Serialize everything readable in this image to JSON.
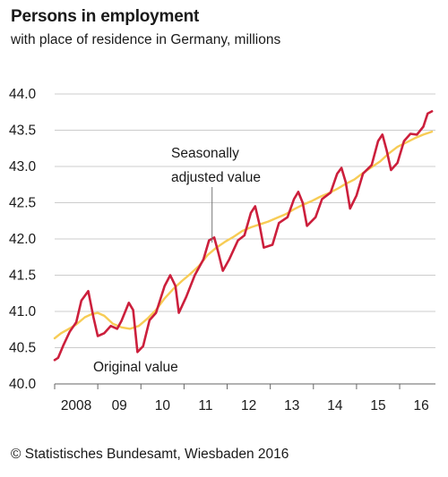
{
  "chart_data": {
    "type": "line",
    "title": "Persons in employment",
    "subtitle": "with place of residence in Germany, millions",
    "ylim": [
      40.0,
      44.0
    ],
    "xlim": [
      2008.0,
      2016.83
    ],
    "y_ticks": [
      "40.0",
      "40.5",
      "41.0",
      "41.5",
      "42.0",
      "42.5",
      "43.0",
      "43.5",
      "44.0"
    ],
    "x_ticks": [
      {
        "label": "2008",
        "x": 2008.5
      },
      {
        "label": "09",
        "x": 2009.5
      },
      {
        "label": "10",
        "x": 2010.5
      },
      {
        "label": "11",
        "x": 2011.5
      },
      {
        "label": "12",
        "x": 2012.5
      },
      {
        "label": "13",
        "x": 2013.5
      },
      {
        "label": "14",
        "x": 2014.5
      },
      {
        "label": "15",
        "x": 2015.5
      },
      {
        "label": "16",
        "x": 2016.5
      }
    ],
    "grid": true,
    "series": [
      {
        "name": "Original value",
        "color": "#cc1f3c",
        "points": [
          [
            2008.0,
            40.33
          ],
          [
            2008.08,
            40.36
          ],
          [
            2008.2,
            40.53
          ],
          [
            2008.35,
            40.72
          ],
          [
            2008.5,
            40.85
          ],
          [
            2008.62,
            41.15
          ],
          [
            2008.78,
            41.28
          ],
          [
            2008.9,
            40.92
          ],
          [
            2009.0,
            40.66
          ],
          [
            2009.15,
            40.7
          ],
          [
            2009.3,
            40.8
          ],
          [
            2009.45,
            40.76
          ],
          [
            2009.55,
            40.87
          ],
          [
            2009.72,
            41.12
          ],
          [
            2009.82,
            41.02
          ],
          [
            2009.92,
            40.44
          ],
          [
            2010.05,
            40.52
          ],
          [
            2010.2,
            40.88
          ],
          [
            2010.35,
            40.98
          ],
          [
            2010.55,
            41.35
          ],
          [
            2010.68,
            41.5
          ],
          [
            2010.8,
            41.35
          ],
          [
            2010.88,
            40.98
          ],
          [
            2011.05,
            41.2
          ],
          [
            2011.25,
            41.5
          ],
          [
            2011.45,
            41.72
          ],
          [
            2011.58,
            41.98
          ],
          [
            2011.7,
            42.02
          ],
          [
            2011.8,
            41.8
          ],
          [
            2011.9,
            41.56
          ],
          [
            2012.05,
            41.72
          ],
          [
            2012.25,
            41.98
          ],
          [
            2012.4,
            42.05
          ],
          [
            2012.55,
            42.36
          ],
          [
            2012.65,
            42.45
          ],
          [
            2012.75,
            42.2
          ],
          [
            2012.85,
            41.88
          ],
          [
            2013.05,
            41.92
          ],
          [
            2013.2,
            42.22
          ],
          [
            2013.4,
            42.3
          ],
          [
            2013.55,
            42.55
          ],
          [
            2013.65,
            42.65
          ],
          [
            2013.75,
            42.5
          ],
          [
            2013.85,
            42.18
          ],
          [
            2014.05,
            42.3
          ],
          [
            2014.2,
            42.55
          ],
          [
            2014.4,
            42.64
          ],
          [
            2014.55,
            42.9
          ],
          [
            2014.65,
            42.98
          ],
          [
            2014.75,
            42.78
          ],
          [
            2014.85,
            42.42
          ],
          [
            2015.0,
            42.6
          ],
          [
            2015.15,
            42.9
          ],
          [
            2015.35,
            43.02
          ],
          [
            2015.5,
            43.35
          ],
          [
            2015.6,
            43.44
          ],
          [
            2015.7,
            43.22
          ],
          [
            2015.8,
            42.95
          ],
          [
            2015.95,
            43.05
          ],
          [
            2016.1,
            43.35
          ],
          [
            2016.25,
            43.45
          ],
          [
            2016.4,
            43.44
          ],
          [
            2016.55,
            43.55
          ],
          [
            2016.65,
            43.73
          ],
          [
            2016.75,
            43.76
          ]
        ]
      },
      {
        "name": "Seasonally adjusted value",
        "color": "#f7cc55",
        "points": [
          [
            2008.0,
            40.63
          ],
          [
            2008.15,
            40.7
          ],
          [
            2008.3,
            40.75
          ],
          [
            2008.5,
            40.82
          ],
          [
            2008.7,
            40.92
          ],
          [
            2008.85,
            40.96
          ],
          [
            2009.0,
            40.98
          ],
          [
            2009.15,
            40.94
          ],
          [
            2009.35,
            40.83
          ],
          [
            2009.55,
            40.78
          ],
          [
            2009.75,
            40.76
          ],
          [
            2009.95,
            40.8
          ],
          [
            2010.15,
            40.9
          ],
          [
            2010.35,
            41.02
          ],
          [
            2010.55,
            41.18
          ],
          [
            2010.75,
            41.31
          ],
          [
            2010.95,
            41.42
          ],
          [
            2011.15,
            41.52
          ],
          [
            2011.35,
            41.63
          ],
          [
            2011.55,
            41.78
          ],
          [
            2011.75,
            41.88
          ],
          [
            2011.95,
            41.96
          ],
          [
            2012.15,
            42.03
          ],
          [
            2012.35,
            42.11
          ],
          [
            2012.55,
            42.16
          ],
          [
            2012.75,
            42.2
          ],
          [
            2012.95,
            42.24
          ],
          [
            2013.15,
            42.29
          ],
          [
            2013.35,
            42.34
          ],
          [
            2013.55,
            42.41
          ],
          [
            2013.75,
            42.47
          ],
          [
            2013.95,
            42.52
          ],
          [
            2014.15,
            42.58
          ],
          [
            2014.35,
            42.63
          ],
          [
            2014.55,
            42.69
          ],
          [
            2014.75,
            42.76
          ],
          [
            2014.95,
            42.82
          ],
          [
            2015.15,
            42.91
          ],
          [
            2015.35,
            42.99
          ],
          [
            2015.55,
            43.07
          ],
          [
            2015.75,
            43.18
          ],
          [
            2015.95,
            43.27
          ],
          [
            2016.15,
            43.33
          ],
          [
            2016.35,
            43.39
          ],
          [
            2016.55,
            43.44
          ],
          [
            2016.75,
            43.48
          ]
        ]
      }
    ],
    "annotations": {
      "seasonal_line1": "Seasonally",
      "seasonal_line2": "adjusted value",
      "original": "Original value",
      "seasonal_pointer_x": 2011.65,
      "seasonal_pointer_y": 41.95
    },
    "source": "© Statistisches Bundesamt, Wiesbaden 2016",
    "colors": {
      "grid": "#cccccc",
      "axis": "#666666"
    }
  }
}
